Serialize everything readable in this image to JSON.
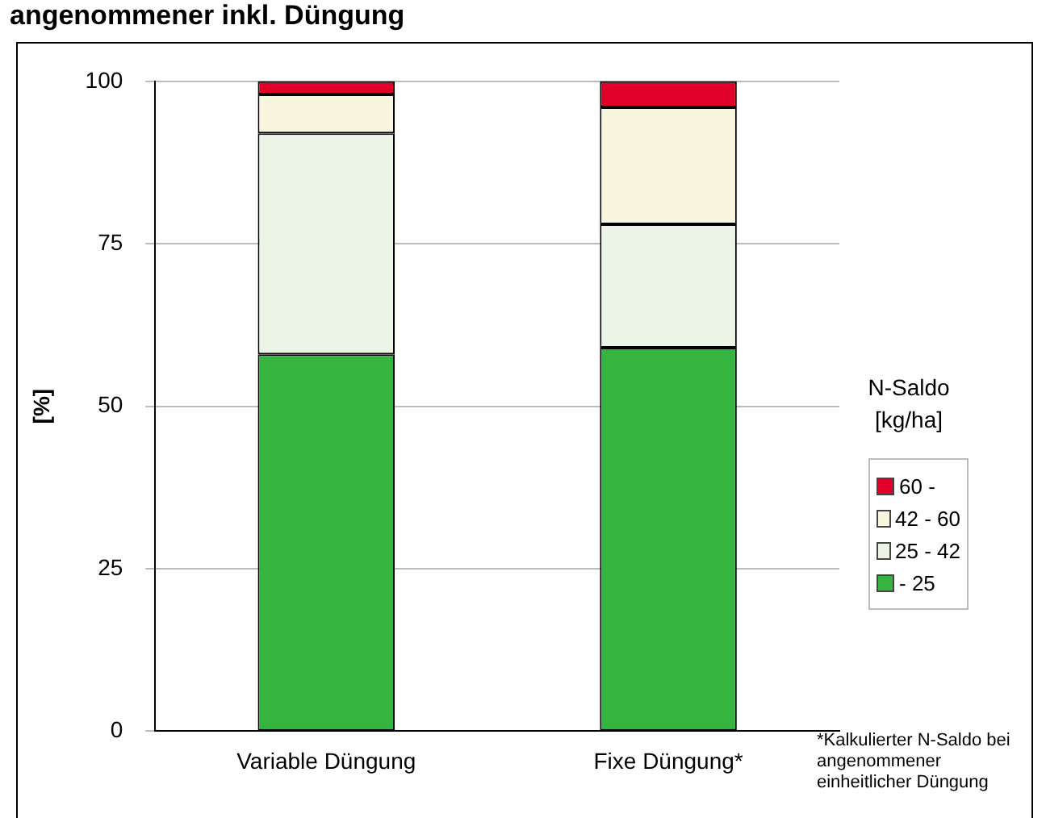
{
  "chart_data": {
    "type": "bar",
    "title": "angenommener inkl. Düngung",
    "ylabel": "[%]",
    "legend_title": "N-Saldo [kg/ha]",
    "categories": [
      "Variable Düngung",
      "Fixe Düngung*"
    ],
    "stacked": true,
    "series": [
      {
        "name": "- 25",
        "color": "#35b440",
        "values": [
          58,
          59
        ]
      },
      {
        "name": "25 - 42",
        "color": "#ecf4e6",
        "values": [
          34,
          19
        ]
      },
      {
        "name": "42 - 60",
        "color": "#f8f6de",
        "values": [
          6,
          18
        ]
      },
      {
        "name": "60 -",
        "color": "#e0002a",
        "values": [
          2,
          4
        ]
      }
    ],
    "ylim": [
      0,
      100
    ],
    "yticks": [
      0,
      25,
      50,
      75,
      100
    ],
    "grid": "y",
    "legend": "right",
    "annotations": [
      "*Kalkulierter N-Saldo bei angenommener einheitlicher Düngung"
    ]
  }
}
